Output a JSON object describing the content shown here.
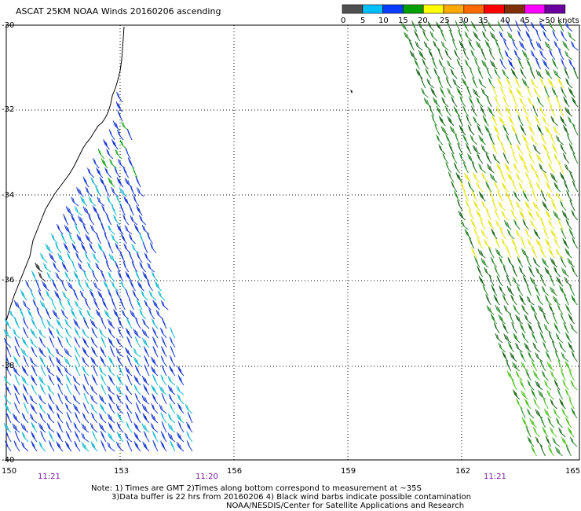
{
  "title": "ASCAT 25KM NOAA Winds 20160206 ascending",
  "legend": {
    "labels": [
      "0",
      "5",
      "10",
      "15",
      "20",
      "25",
      "30",
      "35",
      "40",
      "45",
      ">50 knots"
    ],
    "colors": [
      "#505050",
      "#00bfff",
      "#0a3cff",
      "#00a000",
      "#ffff00",
      "#ffaa00",
      "#ff6a00",
      "#ff0000",
      "#803000",
      "#ff00ff",
      "#6a00a0"
    ]
  },
  "map": {
    "lon_ticks": [
      "150",
      "153",
      "156",
      "159",
      "162",
      "165"
    ],
    "lat_ticks": [
      "-30",
      "-32",
      "-34",
      "-36",
      "-38",
      "-40"
    ],
    "pass_times": [
      "11:21",
      "11:20",
      "11:21"
    ]
  },
  "notes": [
    "Note: 1) Times are GMT 2)Times along bottom correspond to measurement at ~35S",
    "3)Data buffer is 22 hrs from 20160206 4) Black wind barbs indicate possible contamination",
    "NOAA/NESDIS/Center for Satellite Applications and Research"
  ]
}
